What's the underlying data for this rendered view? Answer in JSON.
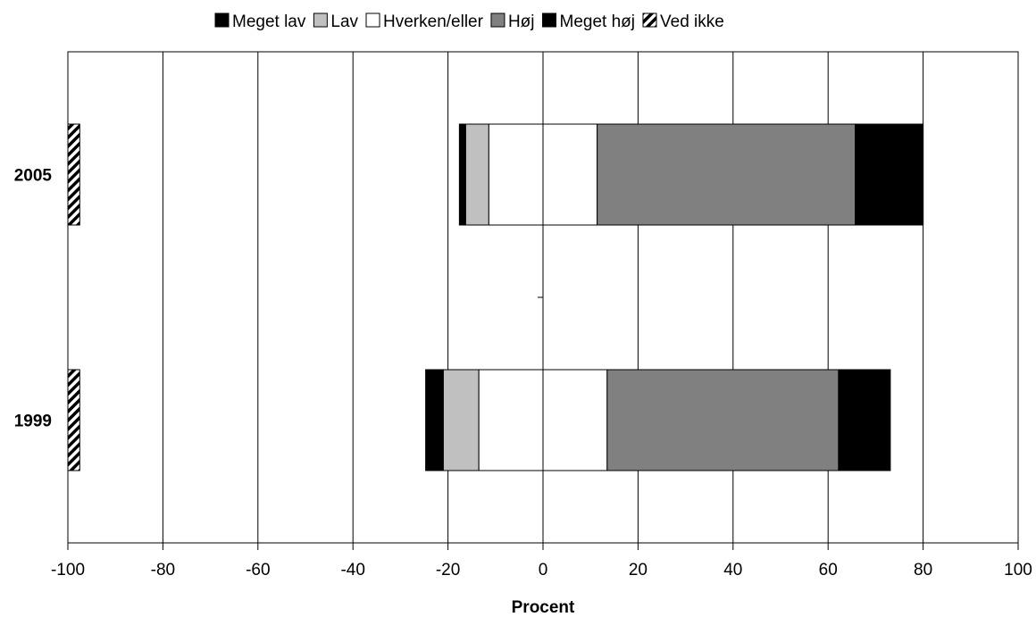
{
  "chart_data": {
    "type": "bar",
    "orientation": "horizontal",
    "stacked": true,
    "diverging": true,
    "xlabel": "Procent",
    "ylabel": "",
    "xlim": [
      -100,
      100
    ],
    "x_ticks": [
      "-100",
      "-80",
      "-60",
      "-40",
      "-20",
      "0",
      "20",
      "40",
      "60",
      "80",
      "100"
    ],
    "categories": [
      "2005",
      "1999"
    ],
    "grid": "vertical",
    "legend_position": "top",
    "series": [
      {
        "name": "Meget lav",
        "side": "negative",
        "color": "#000000",
        "pattern": "solid",
        "values": [
          1.3,
          3.7
        ]
      },
      {
        "name": "Lav",
        "side": "negative",
        "color": "#c0c0c0",
        "pattern": "solid",
        "values": [
          4.9,
          7.5
        ]
      },
      {
        "name": "Hverken/eller",
        "side": "split",
        "color": "#ffffff",
        "pattern": "solid",
        "values": [
          22.8,
          27.0
        ]
      },
      {
        "name": "Høj",
        "side": "positive",
        "color": "#808080",
        "pattern": "solid",
        "values": [
          54.3,
          48.7
        ]
      },
      {
        "name": "Meget høj",
        "side": "positive",
        "color": "#000000",
        "pattern": "solid",
        "values": [
          14.3,
          10.9
        ]
      },
      {
        "name": "Ved ikke",
        "side": "offset",
        "color": "#000000",
        "pattern": "diagonal-stripes",
        "values": [
          2.5,
          2.5
        ]
      }
    ]
  }
}
